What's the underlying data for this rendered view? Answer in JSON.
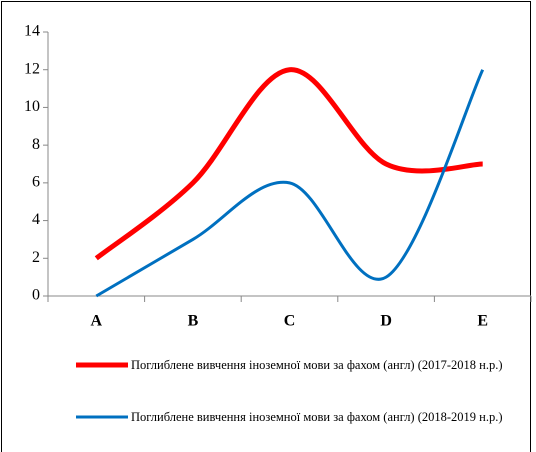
{
  "chart_data": {
    "type": "line",
    "categories": [
      "A",
      "B",
      "C",
      "D",
      "E"
    ],
    "series": [
      {
        "name": "Поглиблене вивчення іноземної мови за фахом (англ) (2017-2018 н.р.)",
        "color": "#ff0000",
        "values": [
          2,
          6,
          12,
          7,
          7
        ]
      },
      {
        "name": "Поглиблене вивчення іноземної мови за фахом (англ) (2018-2019 н.р.)",
        "color": "#0070c0",
        "values": [
          0,
          3,
          6,
          1,
          12
        ]
      }
    ],
    "ylim": [
      0,
      14
    ],
    "yticks": [
      0,
      2,
      4,
      6,
      8,
      10,
      12,
      14
    ],
    "smooth": true,
    "legend": "bottom"
  }
}
